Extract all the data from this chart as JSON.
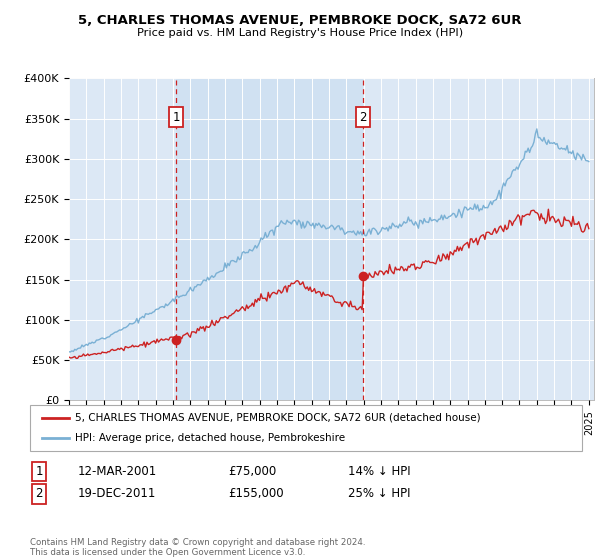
{
  "title": "5, CHARLES THOMAS AVENUE, PEMBROKE DOCK, SA72 6UR",
  "subtitle": "Price paid vs. HM Land Registry's House Price Index (HPI)",
  "ylim": [
    0,
    400000
  ],
  "yticks": [
    0,
    50000,
    100000,
    150000,
    200000,
    250000,
    300000,
    350000,
    400000
  ],
  "ytick_labels": [
    "£0",
    "£50K",
    "£100K",
    "£150K",
    "£200K",
    "£250K",
    "£300K",
    "£350K",
    "£400K"
  ],
  "hpi_color": "#7ab0d4",
  "price_color": "#cc2222",
  "sale1_date": 2001.19,
  "sale1_price": 75000,
  "sale1_label": "1",
  "sale2_date": 2011.96,
  "sale2_price": 155000,
  "sale2_label": "2",
  "legend_line1": "5, CHARLES THOMAS AVENUE, PEMBROKE DOCK, SA72 6UR (detached house)",
  "legend_line2": "HPI: Average price, detached house, Pembrokeshire",
  "annotation1_date": "12-MAR-2001",
  "annotation1_price": "£75,000",
  "annotation1_pct": "14% ↓ HPI",
  "annotation2_date": "19-DEC-2011",
  "annotation2_price": "£155,000",
  "annotation2_pct": "25% ↓ HPI",
  "footer": "Contains HM Land Registry data © Crown copyright and database right 2024.\nThis data is licensed under the Open Government Licence v3.0.",
  "bg_color": "#dce8f5",
  "highlight_color": "#c8ddf0"
}
